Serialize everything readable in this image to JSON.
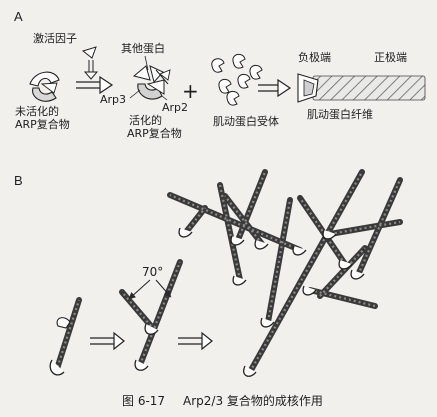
{
  "panel_a": {
    "label": "A",
    "activator": "激活因子",
    "inactive_line1": "未活化的",
    "inactive_line2": "ARP复合物",
    "other_proteins": "其他蛋白",
    "arp3": "Arp3",
    "arp2": "Arp2",
    "active_line1": "活化的",
    "active_line2": "ARP复合物",
    "plus": "+",
    "monomer": "肌动蛋白受体",
    "minus_end": "负极端",
    "plus_end": "正极端",
    "filament": "肌动蛋白纤维"
  },
  "panel_b": {
    "label": "B",
    "angle": "70°"
  },
  "caption": {
    "figure_number": "图 6-17",
    "title": "Arp2/3 复合物的成核作用"
  },
  "colors": {
    "background": "#f1f0ec",
    "filament_dark": "#3a3a3a",
    "filament_light": "#8c8c8c",
    "arp": "#ffffff",
    "text": "#1e1e1e"
  }
}
